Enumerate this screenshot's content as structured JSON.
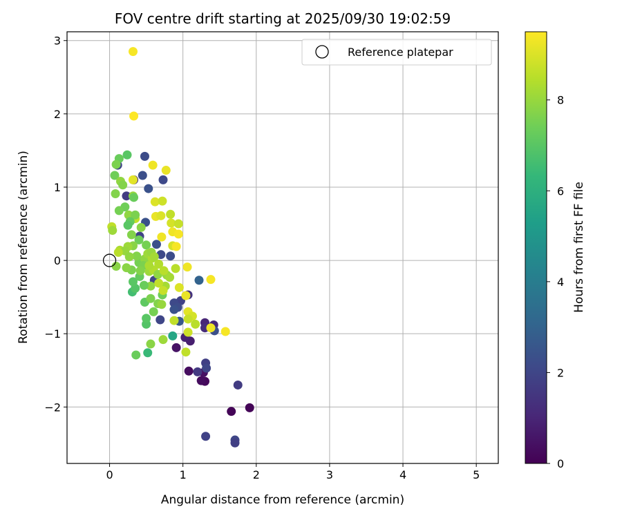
{
  "chart_data": {
    "type": "scatter",
    "title": "FOV centre drift starting at 2025/09/30 19:02:59",
    "xlabel": "Angular distance from reference (arcmin)",
    "ylabel": "Rotation from reference (arcmin)",
    "xlim": [
      -0.58,
      5.3
    ],
    "ylim": [
      -2.77,
      3.12
    ],
    "xticks": [
      0,
      1,
      2,
      3,
      4,
      5
    ],
    "yticks": [
      -2,
      -1,
      0,
      1,
      2,
      3
    ],
    "grid": true,
    "legend": {
      "position": "top-right",
      "entries": [
        {
          "label": "Reference platepar",
          "marker": "hollow-circle"
        }
      ]
    },
    "reference_point": {
      "x": 0,
      "y": 0
    },
    "colorbar": {
      "label": "Hours from first FF file",
      "colormap": "viridis",
      "range": [
        0,
        9.5
      ],
      "ticks": [
        0,
        2,
        4,
        6,
        8
      ]
    },
    "points": [
      {
        "x": 1.66,
        "y": -2.06,
        "h": 0.1
      },
      {
        "x": 1.91,
        "y": -2.01,
        "h": 0.1
      },
      {
        "x": 1.3,
        "y": -1.65,
        "h": 0.2
      },
      {
        "x": 1.25,
        "y": -1.64,
        "h": 0.3
      },
      {
        "x": 1.28,
        "y": -1.53,
        "h": 0.4
      },
      {
        "x": 1.08,
        "y": -1.51,
        "h": 0.3
      },
      {
        "x": 0.91,
        "y": -1.19,
        "h": 0.5
      },
      {
        "x": 1.1,
        "y": -1.1,
        "h": 0.8
      },
      {
        "x": 1.03,
        "y": -1.05,
        "h": 0.9
      },
      {
        "x": 1.2,
        "y": -1.52,
        "h": 1.6
      },
      {
        "x": 1.31,
        "y": -1.4,
        "h": 1.8
      },
      {
        "x": 1.32,
        "y": -1.47,
        "h": 2.0
      },
      {
        "x": 1.75,
        "y": -1.7,
        "h": 1.7
      },
      {
        "x": 1.31,
        "y": -2.4,
        "h": 1.9
      },
      {
        "x": 1.71,
        "y": -2.45,
        "h": 2.0
      },
      {
        "x": 1.71,
        "y": -2.49,
        "h": 1.8
      },
      {
        "x": 1.3,
        "y": -0.85,
        "h": 1.0
      },
      {
        "x": 1.42,
        "y": -0.88,
        "h": 1.1
      },
      {
        "x": 1.3,
        "y": -0.92,
        "h": 1.2
      },
      {
        "x": 1.43,
        "y": -0.96,
        "h": 2.3
      },
      {
        "x": 1.07,
        "y": -0.47,
        "h": 1.4
      },
      {
        "x": 0.97,
        "y": -0.55,
        "h": 1.9
      },
      {
        "x": 0.88,
        "y": -0.58,
        "h": 2.1
      },
      {
        "x": 0.93,
        "y": -0.64,
        "h": 2.2
      },
      {
        "x": 0.88,
        "y": -0.67,
        "h": 2.4
      },
      {
        "x": 0.95,
        "y": -0.83,
        "h": 2.6
      },
      {
        "x": 0.69,
        "y": -0.81,
        "h": 2.0
      },
      {
        "x": 1.22,
        "y": -0.27,
        "h": 3.0
      },
      {
        "x": 0.48,
        "y": 1.42,
        "h": 2.2
      },
      {
        "x": 0.45,
        "y": 1.16,
        "h": 2.3
      },
      {
        "x": 0.73,
        "y": 1.1,
        "h": 2.1
      },
      {
        "x": 0.53,
        "y": 0.98,
        "h": 2.4
      },
      {
        "x": 0.33,
        "y": 1.1,
        "h": 1.3
      },
      {
        "x": 0.11,
        "y": 1.3,
        "h": 2.0
      },
      {
        "x": 0.23,
        "y": 0.88,
        "h": 1.7
      },
      {
        "x": 0.49,
        "y": 0.52,
        "h": 2.4
      },
      {
        "x": 0.64,
        "y": 0.22,
        "h": 2.3
      },
      {
        "x": 0.7,
        "y": 0.08,
        "h": 2.1
      },
      {
        "x": 0.83,
        "y": 0.06,
        "h": 2.2
      },
      {
        "x": 0.41,
        "y": 0.33,
        "h": 1.9
      },
      {
        "x": 0.61,
        "y": -0.27,
        "h": 2.0
      },
      {
        "x": 0.86,
        "y": -1.03,
        "h": 5.6
      },
      {
        "x": 0.52,
        "y": -1.26,
        "h": 6.4
      },
      {
        "x": 0.36,
        "y": -1.29,
        "h": 7.3
      },
      {
        "x": 0.56,
        "y": -1.14,
        "h": 7.8
      },
      {
        "x": 0.73,
        "y": -1.08,
        "h": 8.1
      },
      {
        "x": 1.04,
        "y": -1.25,
        "h": 8.6
      },
      {
        "x": 0.5,
        "y": -0.87,
        "h": 6.9
      },
      {
        "x": 0.5,
        "y": -0.79,
        "h": 7.0
      },
      {
        "x": 0.6,
        "y": -0.7,
        "h": 7.5
      },
      {
        "x": 0.48,
        "y": -0.57,
        "h": 7.1
      },
      {
        "x": 0.56,
        "y": -0.52,
        "h": 7.6
      },
      {
        "x": 0.72,
        "y": -0.47,
        "h": 7.4
      },
      {
        "x": 0.66,
        "y": -0.59,
        "h": 7.7
      },
      {
        "x": 0.71,
        "y": -0.6,
        "h": 8.0
      },
      {
        "x": 0.56,
        "y": -0.35,
        "h": 7.9
      },
      {
        "x": 0.76,
        "y": -0.35,
        "h": 8.2
      },
      {
        "x": 0.47,
        "y": -0.34,
        "h": 7.3
      },
      {
        "x": 0.31,
        "y": -0.43,
        "h": 6.6
      },
      {
        "x": 0.35,
        "y": -0.38,
        "h": 6.9
      },
      {
        "x": 0.32,
        "y": -0.29,
        "h": 7.0
      },
      {
        "x": 0.41,
        "y": -0.22,
        "h": 7.2
      },
      {
        "x": 0.3,
        "y": -0.13,
        "h": 7.6
      },
      {
        "x": 0.23,
        "y": -0.1,
        "h": 7.8
      },
      {
        "x": 0.09,
        "y": -0.08,
        "h": 7.8
      },
      {
        "x": 0.4,
        "y": -0.03,
        "h": 7.5
      },
      {
        "x": 0.48,
        "y": 0.02,
        "h": 7.9
      },
      {
        "x": 0.37,
        "y": 0.06,
        "h": 7.7
      },
      {
        "x": 0.52,
        "y": 0.09,
        "h": 8.1
      },
      {
        "x": 0.58,
        "y": 0.03,
        "h": 8.3
      },
      {
        "x": 0.67,
        "y": -0.05,
        "h": 8.4
      },
      {
        "x": 0.78,
        "y": -0.2,
        "h": 8.0
      },
      {
        "x": 0.82,
        "y": -0.23,
        "h": 8.2
      },
      {
        "x": 0.67,
        "y": -0.31,
        "h": 8.6
      },
      {
        "x": 0.73,
        "y": -0.41,
        "h": 8.7
      },
      {
        "x": 0.9,
        "y": -0.11,
        "h": 8.5
      },
      {
        "x": 0.95,
        "y": -0.37,
        "h": 9.0
      },
      {
        "x": 1.04,
        "y": -0.48,
        "h": 9.2
      },
      {
        "x": 1.06,
        "y": -0.09,
        "h": 9.3
      },
      {
        "x": 1.38,
        "y": -0.26,
        "h": 9.4
      },
      {
        "x": 1.07,
        "y": -0.7,
        "h": 9.1
      },
      {
        "x": 1.13,
        "y": -0.76,
        "h": 8.9
      },
      {
        "x": 1.07,
        "y": -0.8,
        "h": 8.7
      },
      {
        "x": 1.17,
        "y": -0.87,
        "h": 8.5
      },
      {
        "x": 1.07,
        "y": -0.98,
        "h": 8.8
      },
      {
        "x": 1.38,
        "y": -0.92,
        "h": 9.3
      },
      {
        "x": 1.58,
        "y": -0.97,
        "h": 9.4
      },
      {
        "x": 0.88,
        "y": -0.82,
        "h": 8.6
      },
      {
        "x": 0.32,
        "y": 2.85,
        "h": 9.4
      },
      {
        "x": 0.33,
        "y": 1.97,
        "h": 9.5
      },
      {
        "x": 0.59,
        "y": 1.3,
        "h": 9.3
      },
      {
        "x": 0.77,
        "y": 1.23,
        "h": 9.2
      },
      {
        "x": 0.32,
        "y": 1.1,
        "h": 9.1
      },
      {
        "x": 0.62,
        "y": 0.8,
        "h": 9.0
      },
      {
        "x": 0.72,
        "y": 0.81,
        "h": 8.8
      },
      {
        "x": 0.83,
        "y": 0.63,
        "h": 8.6
      },
      {
        "x": 0.63,
        "y": 0.6,
        "h": 9.2
      },
      {
        "x": 0.7,
        "y": 0.61,
        "h": 9.0
      },
      {
        "x": 0.84,
        "y": 0.51,
        "h": 8.9
      },
      {
        "x": 0.94,
        "y": 0.5,
        "h": 8.7
      },
      {
        "x": 0.86,
        "y": 0.39,
        "h": 9.3
      },
      {
        "x": 0.94,
        "y": 0.36,
        "h": 9.4
      },
      {
        "x": 0.71,
        "y": 0.32,
        "h": 9.3
      },
      {
        "x": 0.86,
        "y": 0.2,
        "h": 8.9
      },
      {
        "x": 0.91,
        "y": 0.19,
        "h": 9.4
      },
      {
        "x": 0.35,
        "y": 0.57,
        "h": 8.6
      },
      {
        "x": 0.24,
        "y": 1.44,
        "h": 7.0
      },
      {
        "x": 0.13,
        "y": 1.39,
        "h": 7.3
      },
      {
        "x": 0.09,
        "y": 1.31,
        "h": 7.6
      },
      {
        "x": 0.07,
        "y": 1.16,
        "h": 7.4
      },
      {
        "x": 0.15,
        "y": 1.08,
        "h": 7.9
      },
      {
        "x": 0.18,
        "y": 1.03,
        "h": 7.7
      },
      {
        "x": 0.32,
        "y": 0.88,
        "h": 8.0
      },
      {
        "x": 0.33,
        "y": 0.86,
        "h": 7.3
      },
      {
        "x": 0.08,
        "y": 0.91,
        "h": 7.7
      },
      {
        "x": 0.21,
        "y": 0.73,
        "h": 7.4
      },
      {
        "x": 0.13,
        "y": 0.68,
        "h": 7.5
      },
      {
        "x": 0.26,
        "y": 0.62,
        "h": 7.9
      },
      {
        "x": 0.35,
        "y": 0.62,
        "h": 7.6
      },
      {
        "x": 0.28,
        "y": 0.53,
        "h": 7.2
      },
      {
        "x": 0.25,
        "y": 0.48,
        "h": 7.0
      },
      {
        "x": 0.43,
        "y": 0.45,
        "h": 7.8
      },
      {
        "x": 0.03,
        "y": 0.46,
        "h": 8.6
      },
      {
        "x": 0.04,
        "y": 0.41,
        "h": 8.1
      },
      {
        "x": 0.3,
        "y": 0.35,
        "h": 7.7
      },
      {
        "x": 0.4,
        "y": 0.28,
        "h": 7.4
      },
      {
        "x": 0.32,
        "y": 0.2,
        "h": 7.8
      },
      {
        "x": 0.25,
        "y": 0.19,
        "h": 8.1
      },
      {
        "x": 0.5,
        "y": 0.21,
        "h": 7.5
      },
      {
        "x": 0.14,
        "y": 0.14,
        "h": 8.3
      },
      {
        "x": 0.21,
        "y": 0.13,
        "h": 8.0
      },
      {
        "x": 0.12,
        "y": 0.11,
        "h": 8.5
      },
      {
        "x": 0.27,
        "y": 0.05,
        "h": 7.9
      },
      {
        "x": 0.57,
        "y": 0.11,
        "h": 8.0
      },
      {
        "x": 0.61,
        "y": 0.05,
        "h": 8.2
      },
      {
        "x": 0.46,
        "y": -0.07,
        "h": 7.6
      },
      {
        "x": 0.54,
        "y": -0.15,
        "h": 8.1
      },
      {
        "x": 0.42,
        "y": -0.14,
        "h": 7.7
      },
      {
        "x": 0.6,
        "y": -0.13,
        "h": 8.4
      },
      {
        "x": 0.66,
        "y": -0.19,
        "h": 7.9
      },
      {
        "x": 0.74,
        "y": -0.14,
        "h": 8.5
      },
      {
        "x": 0.54,
        "y": -0.07,
        "h": 8.3
      }
    ]
  }
}
